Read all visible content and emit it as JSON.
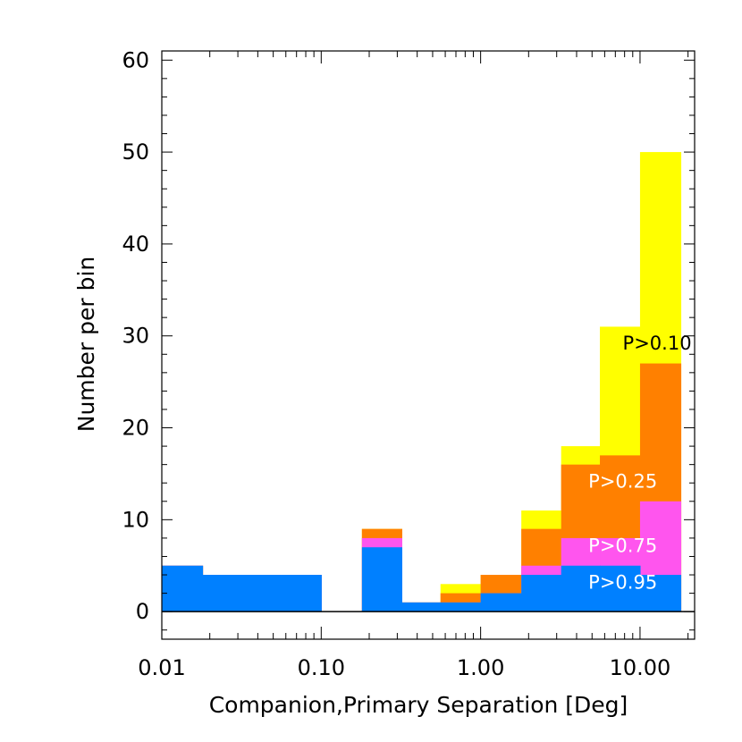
{
  "chart_data": {
    "type": "bar",
    "stacked_histogram": true,
    "xscale": "log",
    "xlabel": "Companion,Primary Separation [Deg]",
    "ylabel": "Number per bin",
    "xlim": [
      0.01,
      22
    ],
    "ylim": [
      -3,
      61
    ],
    "xticks": [
      {
        "value": 0.01,
        "label": "0.01"
      },
      {
        "value": 0.1,
        "label": "0.10"
      },
      {
        "value": 1,
        "label": "1.00"
      },
      {
        "value": 10,
        "label": "10.00"
      }
    ],
    "yticks": [
      {
        "value": 0,
        "label": "0"
      },
      {
        "value": 10,
        "label": "10"
      },
      {
        "value": 20,
        "label": "20"
      },
      {
        "value": 30,
        "label": "30"
      },
      {
        "value": 40,
        "label": "40"
      },
      {
        "value": 50,
        "label": "50"
      },
      {
        "value": 60,
        "label": "60"
      }
    ],
    "bin_edges": [
      0.01,
      0.018,
      0.032,
      0.056,
      0.1,
      0.18,
      0.32,
      0.56,
      1.0,
      1.8,
      3.2,
      5.6,
      10.0,
      18.0
    ],
    "series": [
      {
        "label": "P>0.95",
        "color": "#0080ff",
        "values": [
          5,
          4,
          4,
          4,
          0,
          7,
          1,
          1,
          2,
          4,
          5,
          5,
          4
        ]
      },
      {
        "label": "P>0.75",
        "color": "#ff55ee",
        "values": [
          5,
          4,
          4,
          4,
          0,
          8,
          1,
          1,
          2,
          5,
          8,
          8,
          12
        ]
      },
      {
        "label": "P>0.25",
        "color": "#ff8000",
        "values": [
          5,
          4,
          4,
          4,
          0,
          9,
          1,
          2,
          4,
          9,
          16,
          17,
          27
        ]
      },
      {
        "label": "P>0.10",
        "color": "#ffff00",
        "values": [
          5,
          4,
          4,
          4,
          0,
          9,
          1,
          3,
          4,
          11,
          18,
          31,
          50
        ]
      }
    ],
    "annotations": [
      {
        "text": "P>0.10",
        "x": 12.8,
        "y": 28.5,
        "color": "#000000"
      },
      {
        "text": "P>0.25",
        "x": 7.8,
        "y": 13.5,
        "color": "#ffffff"
      },
      {
        "text": "P>0.75",
        "x": 7.8,
        "y": 6.5,
        "color": "#ffffff"
      },
      {
        "text": "P>0.95",
        "x": 7.8,
        "y": 2.5,
        "color": "#ffffff"
      }
    ],
    "grid": false,
    "zero_line": true
  }
}
